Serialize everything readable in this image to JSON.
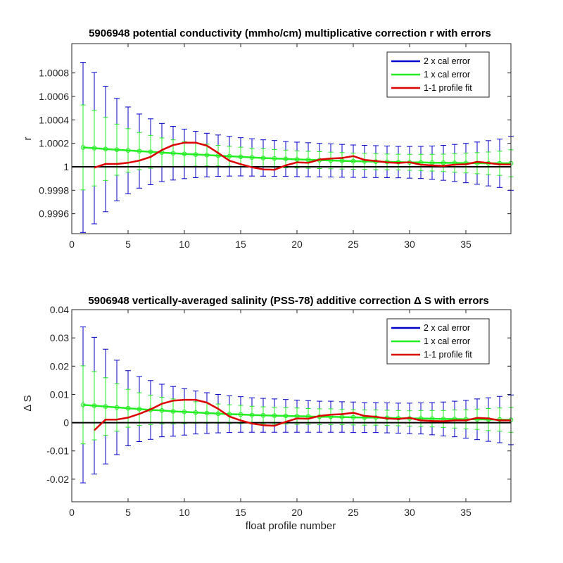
{
  "colors": {
    "cal2": "#0000cc",
    "cal1": "#22ee22",
    "fit": "#dd0000",
    "ref": "#000000",
    "axis": "#262626"
  },
  "chart_data": [
    {
      "type": "line",
      "title": "5906948 potential conductivity (mmho/cm) multiplicative correction r with errors",
      "xlabel": "",
      "ylabel": "r",
      "xlim": [
        0,
        39
      ],
      "ylim": [
        0.99943,
        1.00105
      ],
      "xticks": [
        0,
        5,
        10,
        15,
        20,
        25,
        30,
        35
      ],
      "yticks": [
        0.9996,
        0.9998,
        1,
        1.0002,
        1.0004,
        1.0006,
        1.0008
      ],
      "ytick_labels": [
        "0.9996",
        "0.9998",
        "1",
        "1.0002",
        "1.0004",
        "1.0006",
        "1.0008"
      ],
      "legend_position": "top-right",
      "reference_line": 1,
      "series": [
        {
          "name": "2 x cal error",
          "type": "errorbar",
          "color": "#0000cc",
          "x": [
            1,
            2,
            3,
            4,
            5,
            6,
            7,
            8,
            9,
            10,
            11,
            12,
            13,
            14,
            15,
            16,
            17,
            18,
            19,
            20,
            21,
            22,
            23,
            24,
            25,
            26,
            27,
            28,
            29,
            30,
            31,
            32,
            33,
            34,
            35,
            36,
            37,
            38,
            39
          ],
          "y": [
            1.000165,
            1.000159,
            1.000152,
            1.000146,
            1.00014,
            1.000134,
            1.000128,
            1.000122,
            1.000116,
            1.00011,
            1.000105,
            1.0001,
            1.000095,
            1.00009,
            1.000085,
            1.00008,
            1.000075,
            1.000071,
            1.000067,
            1.000063,
            1.00006,
            1.000057,
            1.000054,
            1.000051,
            1.000048,
            1.000046,
            1.000044,
            1.000042,
            1.00004,
            1.000038,
            1.000037,
            1.000035,
            1.000034,
            1.000033,
            1.000032,
            1.000031,
            1.00003,
            1.00003,
            1.00003
          ],
          "err": [
            0.000725,
            0.000645,
            0.000535,
            0.000437,
            0.00037,
            0.000316,
            0.000281,
            0.000248,
            0.000229,
            0.000211,
            0.000198,
            0.000186,
            0.000176,
            0.000169,
            0.000163,
            0.000159,
            0.000155,
            0.000153,
            0.000149,
            0.000147,
            0.000145,
            0.000143,
            0.000141,
            0.00014,
            0.000138,
            0.000137,
            0.000136,
            0.000135,
            0.000134,
            0.000135,
            0.000137,
            0.000142,
            0.000149,
            0.000158,
            0.000168,
            0.00018,
            0.000193,
            0.000206,
            0.00023
          ]
        },
        {
          "name": "1 x cal error",
          "type": "errorbar",
          "color": "#22ee22",
          "x": [
            1,
            2,
            3,
            4,
            5,
            6,
            7,
            8,
            9,
            10,
            11,
            12,
            13,
            14,
            15,
            16,
            17,
            18,
            19,
            20,
            21,
            22,
            23,
            24,
            25,
            26,
            27,
            28,
            29,
            30,
            31,
            32,
            33,
            34,
            35,
            36,
            37,
            38,
            39
          ],
          "y": [
            1.000165,
            1.000159,
            1.000152,
            1.000146,
            1.00014,
            1.000134,
            1.000128,
            1.000122,
            1.000116,
            1.00011,
            1.000105,
            1.0001,
            1.000095,
            1.00009,
            1.000085,
            1.00008,
            1.000075,
            1.000071,
            1.000067,
            1.000063,
            1.00006,
            1.000057,
            1.000054,
            1.000051,
            1.000048,
            1.000046,
            1.000044,
            1.000042,
            1.00004,
            1.000038,
            1.000037,
            1.000035,
            1.000034,
            1.000033,
            1.000032,
            1.000031,
            1.00003,
            1.00003,
            1.00003
          ],
          "err": [
            0.000362,
            0.000322,
            0.000268,
            0.000218,
            0.000185,
            0.000158,
            0.00014,
            0.000124,
            0.000114,
            0.000105,
            9.9e-05,
            9.3e-05,
            8.8e-05,
            8.4e-05,
            8.2e-05,
            7.9e-05,
            7.8e-05,
            7.6e-05,
            7.5e-05,
            7.3e-05,
            7.2e-05,
            7.2e-05,
            7.1e-05,
            7e-05,
            6.9e-05,
            6.8e-05,
            6.8e-05,
            6.7e-05,
            6.7e-05,
            6.8e-05,
            6.9e-05,
            7.1e-05,
            7.4e-05,
            7.9e-05,
            8.4e-05,
            9e-05,
            9.6e-05,
            0.000103,
            0.000115
          ]
        },
        {
          "name": "1-1 profile fit",
          "type": "line",
          "color": "#dd0000",
          "x": [
            2,
            3,
            4,
            5,
            6,
            7,
            8,
            9,
            10,
            11,
            12,
            13,
            14,
            15,
            16,
            17,
            18,
            19,
            20,
            21,
            22,
            23,
            24,
            25,
            26,
            27,
            28,
            29,
            30,
            31,
            32,
            33,
            34,
            35,
            36,
            37,
            38,
            39
          ],
          "y": [
            0.999993,
            1.000024,
            1.000024,
            1.000034,
            1.000053,
            1.000084,
            1.000143,
            1.000185,
            1.000205,
            1.000206,
            1.00018,
            1.000118,
            1.000052,
            1.000022,
            0.999996,
            0.999978,
            0.999975,
            1.000012,
            1.000038,
            1.000034,
            1.000061,
            1.000071,
            1.000075,
            1.000091,
            1.000059,
            1.00005,
            1.000037,
            1.000033,
            1.000039,
            1.000018,
            1.000012,
            1.000008,
            1.000018,
            1.000021,
            1.000042,
            1.000033,
            1.00002,
            1.00002
          ]
        }
      ]
    },
    {
      "type": "line",
      "title": "5906948 vertically-averaged salinity (PSS-78) additive correction Δ S with errors",
      "xlabel": "float profile number",
      "ylabel": "Δ S",
      "xlim": [
        0,
        39
      ],
      "ylim": [
        -0.028,
        0.04
      ],
      "xticks": [
        0,
        5,
        10,
        15,
        20,
        25,
        30,
        35
      ],
      "yticks": [
        -0.02,
        -0.01,
        0,
        0.01,
        0.02,
        0.03,
        0.04
      ],
      "ytick_labels": [
        "-0.02",
        "-0.01",
        "0",
        "0.01",
        "0.02",
        "0.03",
        "0.04"
      ],
      "legend_position": "top-right",
      "reference_line": 0,
      "series": [
        {
          "name": "2 x cal error",
          "type": "errorbar",
          "color": "#0000cc",
          "x": [
            1,
            2,
            3,
            4,
            5,
            6,
            7,
            8,
            9,
            10,
            11,
            12,
            13,
            14,
            15,
            16,
            17,
            18,
            19,
            20,
            21,
            22,
            23,
            24,
            25,
            26,
            27,
            28,
            29,
            30,
            31,
            32,
            33,
            34,
            35,
            36,
            37,
            38,
            39
          ],
          "y": [
            0.0063,
            0.006,
            0.0057,
            0.0054,
            0.0051,
            0.0048,
            0.0045,
            0.0043,
            0.004,
            0.0038,
            0.0036,
            0.0034,
            0.0032,
            0.003,
            0.0029,
            0.0027,
            0.0026,
            0.0025,
            0.0024,
            0.0023,
            0.0022,
            0.0021,
            0.0021,
            0.002,
            0.0019,
            0.0018,
            0.0018,
            0.0017,
            0.0016,
            0.0015,
            0.0015,
            0.0014,
            0.0013,
            0.0013,
            0.0012,
            0.0012,
            0.0011,
            0.0011,
            0.001
          ],
          "err": [
            0.0276,
            0.0242,
            0.0203,
            0.0167,
            0.0133,
            0.0115,
            0.0104,
            0.0093,
            0.0088,
            0.0082,
            0.0076,
            0.0072,
            0.0068,
            0.0065,
            0.0063,
            0.0061,
            0.006,
            0.0059,
            0.0058,
            0.0057,
            0.0056,
            0.0055,
            0.0055,
            0.0054,
            0.0054,
            0.0053,
            0.0053,
            0.0053,
            0.0053,
            0.0054,
            0.0055,
            0.0057,
            0.006,
            0.0063,
            0.0067,
            0.0072,
            0.0077,
            0.0082,
            0.0088
          ]
        },
        {
          "name": "1 x cal error",
          "type": "errorbar",
          "color": "#22ee22",
          "x": [
            1,
            2,
            3,
            4,
            5,
            6,
            7,
            8,
            9,
            10,
            11,
            12,
            13,
            14,
            15,
            16,
            17,
            18,
            19,
            20,
            21,
            22,
            23,
            24,
            25,
            26,
            27,
            28,
            29,
            30,
            31,
            32,
            33,
            34,
            35,
            36,
            37,
            38,
            39
          ],
          "y": [
            0.0063,
            0.006,
            0.0057,
            0.0054,
            0.0051,
            0.0048,
            0.0045,
            0.0043,
            0.004,
            0.0038,
            0.0036,
            0.0034,
            0.0032,
            0.003,
            0.0029,
            0.0027,
            0.0026,
            0.0025,
            0.0024,
            0.0023,
            0.0022,
            0.0021,
            0.0021,
            0.002,
            0.0019,
            0.0018,
            0.0018,
            0.0017,
            0.0016,
            0.0015,
            0.0015,
            0.0014,
            0.0013,
            0.0013,
            0.0012,
            0.0012,
            0.0011,
            0.0011,
            0.001
          ],
          "err": [
            0.0138,
            0.0121,
            0.0102,
            0.0084,
            0.0067,
            0.0058,
            0.0052,
            0.0047,
            0.0044,
            0.0041,
            0.0038,
            0.0036,
            0.0034,
            0.0033,
            0.0032,
            0.0031,
            0.003,
            0.003,
            0.0029,
            0.0029,
            0.0028,
            0.0028,
            0.0028,
            0.0027,
            0.0027,
            0.0027,
            0.0027,
            0.0027,
            0.0027,
            0.0027,
            0.0028,
            0.0029,
            0.003,
            0.0032,
            0.0034,
            0.0036,
            0.0039,
            0.0041,
            0.0044
          ]
        },
        {
          "name": "1-1 profile fit",
          "type": "line",
          "color": "#dd0000",
          "x": [
            2,
            3,
            4,
            5,
            6,
            7,
            8,
            9,
            10,
            11,
            12,
            13,
            14,
            15,
            16,
            17,
            18,
            19,
            20,
            21,
            22,
            23,
            24,
            25,
            26,
            27,
            28,
            29,
            30,
            31,
            32,
            33,
            34,
            35,
            36,
            37,
            38,
            39
          ],
          "y": [
            -0.0027,
            0.0011,
            0.0011,
            0.0018,
            0.0031,
            0.0047,
            0.0067,
            0.0078,
            0.0081,
            0.0081,
            0.0071,
            0.0049,
            0.0022,
            0.0008,
            -0.0003,
            -0.0009,
            -0.0011,
            0.0003,
            0.0015,
            0.0014,
            0.0024,
            0.0028,
            0.003,
            0.0035,
            0.0024,
            0.0021,
            0.0015,
            0.0013,
            0.0017,
            0.0008,
            0.0006,
            0.0005,
            0.0008,
            0.0008,
            0.0017,
            0.0015,
            0.0008,
            0.0008
          ]
        }
      ]
    }
  ]
}
